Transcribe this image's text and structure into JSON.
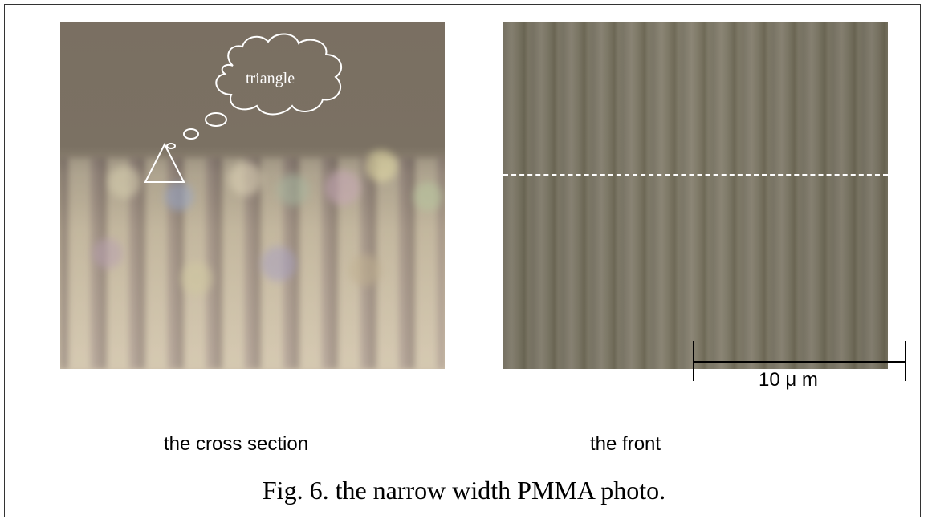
{
  "figure": {
    "caption": "Fig. 6. the narrow width PMMA photo.",
    "panels": [
      {
        "label": "the cross section"
      },
      {
        "label": "the front"
      }
    ],
    "annotation": {
      "callout_text": "triangle"
    },
    "scale_bar": {
      "label": "10 μ m"
    }
  }
}
